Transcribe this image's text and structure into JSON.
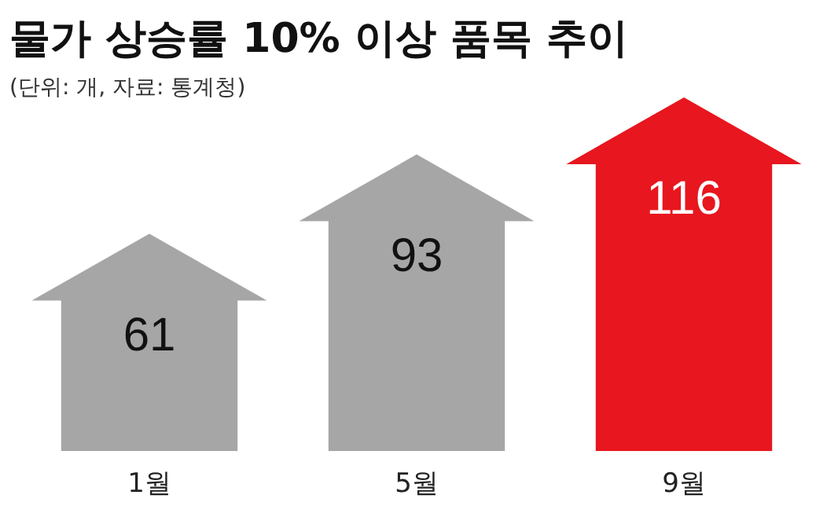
{
  "chart_data": {
    "type": "bar",
    "title": "물가 상승률 10% 이상 품목 추이",
    "subtitle": "(단위: 개, 자료: 통계청)",
    "categories": [
      "1월",
      "5월",
      "9월"
    ],
    "values": [
      61,
      93,
      116
    ],
    "colors": [
      "#a6a6a6",
      "#a6a6a6",
      "#e8161e"
    ],
    "data_labels": true
  }
}
